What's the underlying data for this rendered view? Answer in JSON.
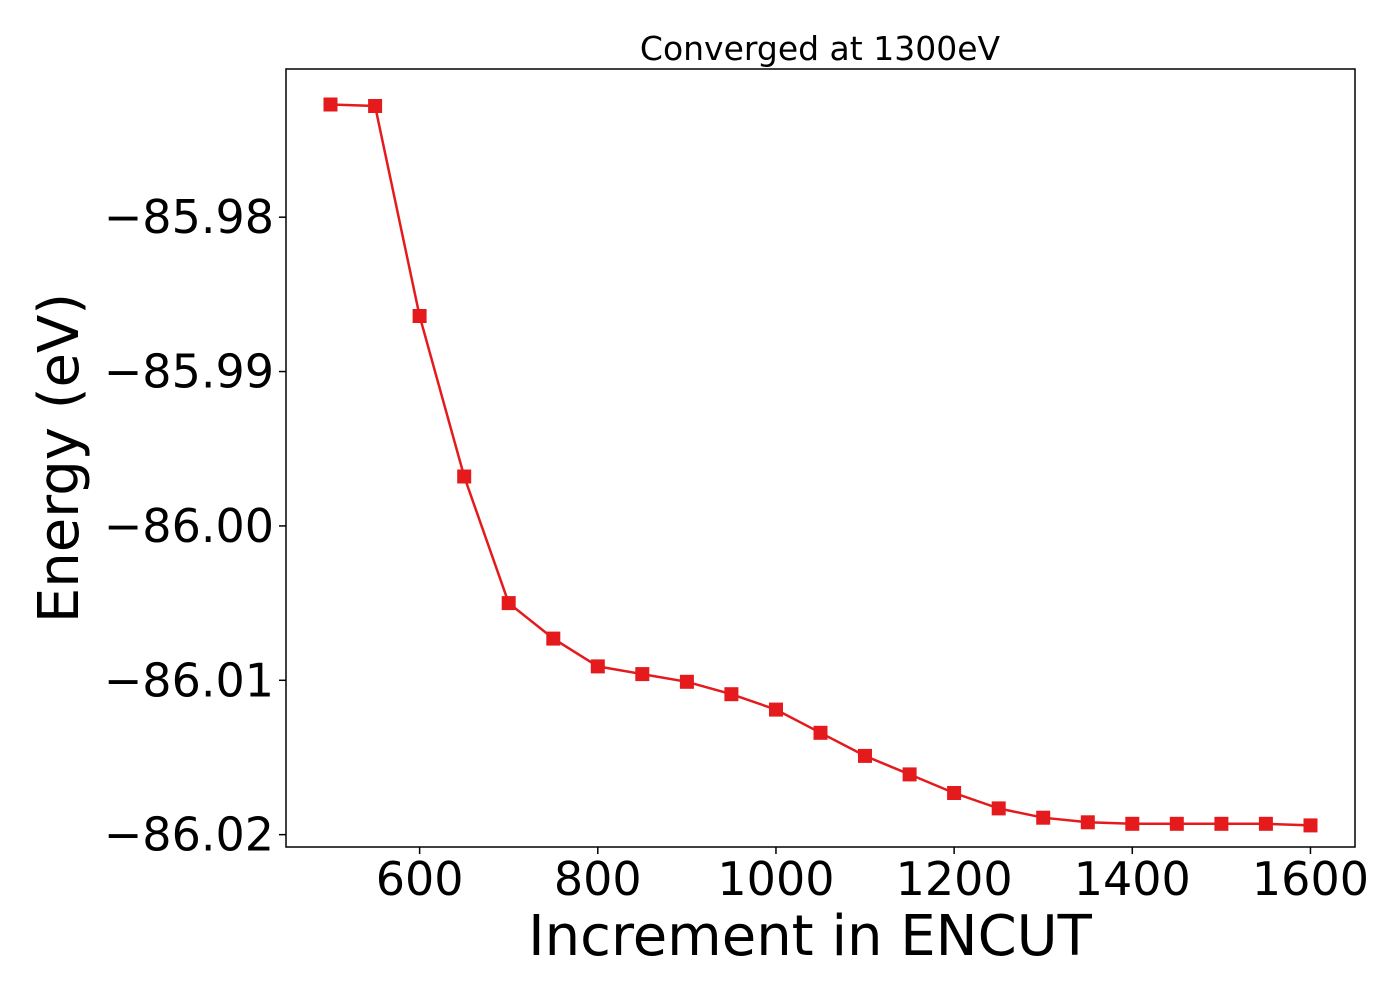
{
  "chart_data": {
    "type": "line",
    "title": "Converged at 1300eV",
    "xlabel": "Increment in ENCUT",
    "ylabel": "Energy (eV)",
    "xlim": [
      450,
      1650
    ],
    "ylim": [
      -86.0208,
      -85.9704
    ],
    "x_ticks": [
      600,
      800,
      1000,
      1200,
      1400,
      1600
    ],
    "x_tick_labels": [
      "600",
      "800",
      "1000",
      "1200",
      "1400",
      "1600"
    ],
    "y_ticks": [
      -85.98,
      -85.99,
      -86.0,
      -86.01,
      -86.02
    ],
    "y_tick_labels": [
      "−85.98",
      "−85.99",
      "−86.00",
      "−86.01",
      "−86.02"
    ],
    "grid": false,
    "marker": "square",
    "color": "#e41a1c",
    "series": [
      {
        "x": [
          500,
          550,
          600,
          650,
          700,
          750,
          800,
          850,
          900,
          950,
          1000,
          1050,
          1100,
          1150,
          1200,
          1250,
          1300,
          1350,
          1400,
          1450,
          1500,
          1550,
          1600
        ],
        "y": [
          -85.9727,
          -85.9728,
          -85.9864,
          -85.9968,
          -86.005,
          -86.0073,
          -86.0091,
          -86.0096,
          -86.0101,
          -86.0109,
          -86.0119,
          -86.0134,
          -86.0149,
          -86.0161,
          -86.0173,
          -86.0183,
          -86.0189,
          -86.0192,
          -86.0193,
          -86.0193,
          -86.0193,
          -86.0193,
          -86.0194
        ]
      }
    ]
  }
}
